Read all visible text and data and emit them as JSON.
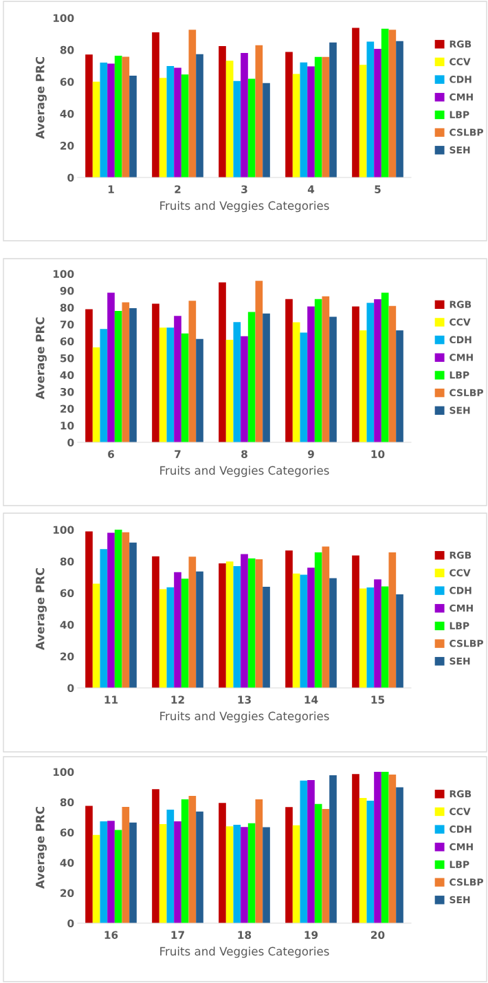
{
  "chart_data": [
    {
      "type": "bar",
      "xlabel": "Fruits and Veggies Categories",
      "ylabel": "Average PRC",
      "categories": [
        "1",
        "2",
        "3",
        "4",
        "5"
      ],
      "ylim": [
        0,
        100
      ],
      "yticks": [
        0,
        20,
        40,
        60,
        80,
        100
      ],
      "grid": false,
      "legend": "right",
      "series": [
        {
          "name": "RGB",
          "color": "#c00000",
          "values": [
            77,
            91,
            82.3,
            78.7,
            93.8
          ]
        },
        {
          "name": "CCV",
          "color": "#ffff00",
          "values": [
            60,
            62.4,
            73.2,
            64.9,
            70.6
          ]
        },
        {
          "name": "CDH",
          "color": "#00b0f0",
          "values": [
            72,
            69.8,
            60.4,
            72.1,
            85.1
          ]
        },
        {
          "name": "CMH",
          "color": "#9900cc",
          "values": [
            71.3,
            68.7,
            78,
            69.6,
            80.6
          ]
        },
        {
          "name": "LBP",
          "color": "#00ff00",
          "values": [
            76.3,
            64.6,
            61.8,
            75.5,
            93.2
          ]
        },
        {
          "name": "CSLBP",
          "color": "#ed7d31",
          "values": [
            75.7,
            92.6,
            82.9,
            75.5,
            92.6
          ]
        },
        {
          "name": "SEH",
          "color": "#255e91",
          "values": [
            63.8,
            77.3,
            59.2,
            84.6,
            85.4
          ]
        }
      ]
    },
    {
      "type": "bar",
      "xlabel": "Fruits and Veggies Categories",
      "ylabel": "Average PRC",
      "categories": [
        "6",
        "7",
        "8",
        "9",
        "10"
      ],
      "ylim": [
        0,
        100
      ],
      "yticks": [
        0,
        10,
        20,
        30,
        40,
        50,
        60,
        70,
        80,
        90,
        100
      ],
      "grid": false,
      "legend": "right",
      "series": [
        {
          "name": "RGB",
          "color": "#c00000",
          "values": [
            79,
            82.2,
            94.9,
            85,
            80.6
          ]
        },
        {
          "name": "CCV",
          "color": "#ffff00",
          "values": [
            56.3,
            68.1,
            60.8,
            71.2,
            66.4
          ]
        },
        {
          "name": "CDH",
          "color": "#00b0f0",
          "values": [
            67.2,
            68.1,
            71.3,
            65.1,
            82.8
          ]
        },
        {
          "name": "CMH",
          "color": "#9900cc",
          "values": [
            88.8,
            75,
            63,
            80.6,
            84.9
          ]
        },
        {
          "name": "LBP",
          "color": "#00ff00",
          "values": [
            78,
            64.6,
            77.3,
            85,
            88.8
          ]
        },
        {
          "name": "CSLBP",
          "color": "#ed7d31",
          "values": [
            83.1,
            84,
            95.8,
            86.6,
            80.9
          ]
        },
        {
          "name": "SEH",
          "color": "#255e91",
          "values": [
            79.6,
            61.3,
            76.4,
            74.5,
            66.4
          ]
        }
      ]
    },
    {
      "type": "bar",
      "xlabel": "Fruits and Veggies Categories",
      "ylabel": "Average PRC",
      "categories": [
        "11",
        "12",
        "13",
        "14",
        "15"
      ],
      "ylim": [
        0,
        100
      ],
      "yticks": [
        0,
        20,
        40,
        60,
        80,
        100
      ],
      "grid": false,
      "legend": "right",
      "series": [
        {
          "name": "RGB",
          "color": "#c00000",
          "values": [
            98.9,
            83.2,
            78.7,
            86.8,
            83.7
          ]
        },
        {
          "name": "CCV",
          "color": "#ffff00",
          "values": [
            65.9,
            62.4,
            79.9,
            72.3,
            62.8
          ]
        },
        {
          "name": "CDH",
          "color": "#00b0f0",
          "values": [
            87.7,
            63.6,
            77,
            71.5,
            63.5
          ]
        },
        {
          "name": "CMH",
          "color": "#9900cc",
          "values": [
            98,
            73.1,
            84.6,
            76,
            68.6
          ]
        },
        {
          "name": "LBP",
          "color": "#00ff00",
          "values": [
            100,
            69,
            81.8,
            85.7,
            64.1
          ]
        },
        {
          "name": "CSLBP",
          "color": "#ed7d31",
          "values": [
            98.4,
            82.9,
            81.3,
            89.3,
            85.7
          ]
        },
        {
          "name": "SEH",
          "color": "#255e91",
          "values": [
            91.8,
            73.6,
            63.9,
            69.4,
            59.1
          ]
        }
      ]
    },
    {
      "type": "bar",
      "xlabel": "Fruits and Veggies Categories",
      "ylabel": "Average PRC",
      "categories": [
        "16",
        "17",
        "18",
        "19",
        "20"
      ],
      "ylim": [
        0,
        100
      ],
      "yticks": [
        0,
        20,
        40,
        60,
        80,
        100
      ],
      "grid": false,
      "legend": "right",
      "series": [
        {
          "name": "RGB",
          "color": "#c00000",
          "values": [
            77.5,
            88.5,
            79.4,
            76.7,
            98.5
          ]
        },
        {
          "name": "CCV",
          "color": "#ffff00",
          "values": [
            58.3,
            65.5,
            64,
            64.7,
            82.7
          ]
        },
        {
          "name": "CDH",
          "color": "#00b0f0",
          "values": [
            67.3,
            75,
            65,
            94.2,
            80.9
          ]
        },
        {
          "name": "CMH",
          "color": "#9900cc",
          "values": [
            67.6,
            67.3,
            63.5,
            94.5,
            100
          ]
        },
        {
          "name": "LBP",
          "color": "#00ff00",
          "values": [
            61.6,
            81.8,
            66,
            78.8,
            100
          ]
        },
        {
          "name": "CSLBP",
          "color": "#ed7d31",
          "values": [
            76.8,
            84.1,
            81.8,
            75.4,
            98.2
          ]
        },
        {
          "name": "SEH",
          "color": "#255e91",
          "values": [
            66.5,
            73.7,
            63.4,
            97.7,
            89.8
          ]
        }
      ]
    }
  ]
}
